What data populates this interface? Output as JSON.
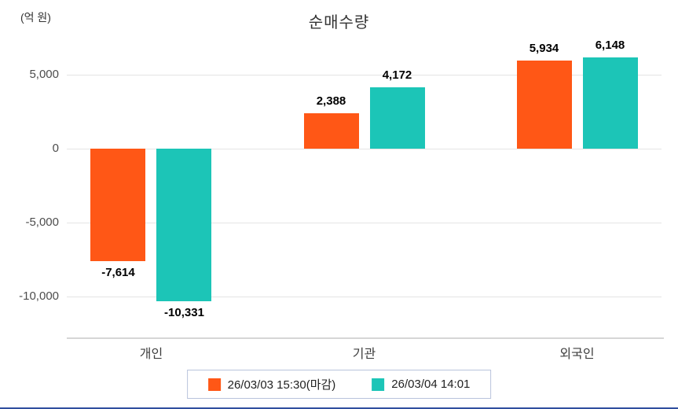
{
  "chart_data": {
    "type": "bar",
    "title": "순매수량",
    "ylabel": "(억 원)",
    "categories": [
      "개인",
      "기관",
      "외국인"
    ],
    "series": [
      {
        "name": "26/03/03 15:30(마감)",
        "color": "#ff5716",
        "values": [
          -7614,
          2388,
          5934
        ]
      },
      {
        "name": "26/03/04 14:01",
        "color": "#1cc5b7",
        "values": [
          -10331,
          4172,
          6148
        ]
      }
    ],
    "yticks": [
      5000,
      0,
      -5000,
      -10000
    ],
    "ylim": [
      -12000,
      7000
    ],
    "grid": true,
    "legend_position": "bottom",
    "accent_line_color": "#2f4f9e"
  }
}
